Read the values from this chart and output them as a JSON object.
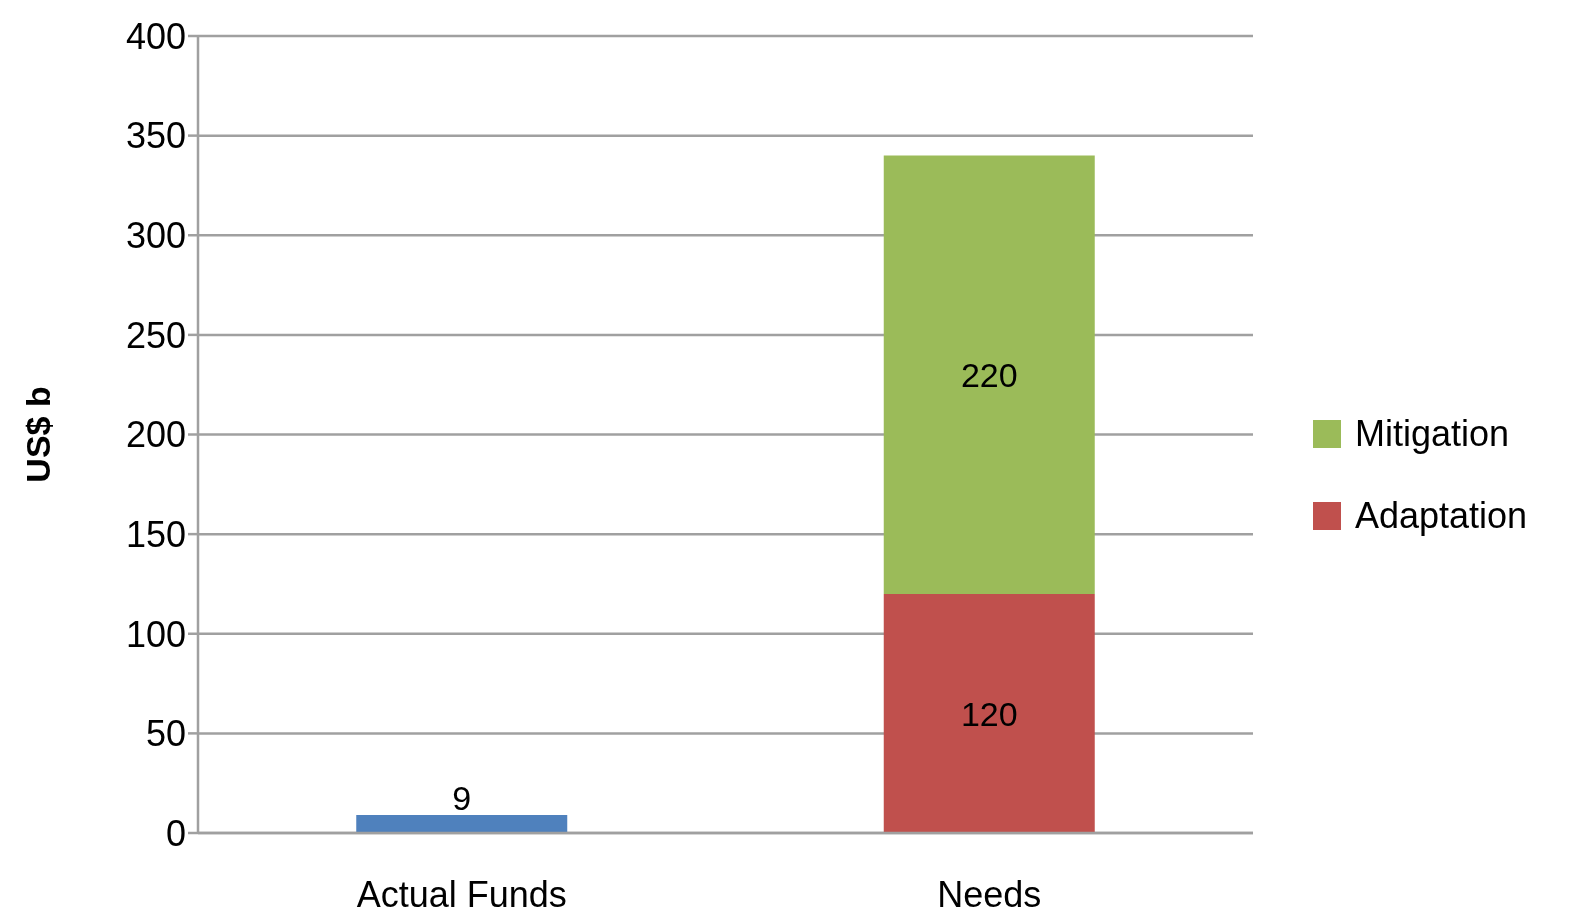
{
  "chart_data": {
    "type": "bar",
    "ylabel": "US$ b",
    "categories": [
      "Actual Funds",
      "Needs"
    ],
    "series": [
      {
        "color": "#4f81bd",
        "values": [
          9,
          null
        ]
      },
      {
        "name": "Adaptation",
        "color": "#c0504d",
        "values": [
          null,
          120
        ]
      },
      {
        "name": "Mitigation",
        "color": "#9bbb59",
        "values": [
          null,
          220
        ]
      }
    ],
    "stacked": true,
    "data_labels": true,
    "ylim": [
      0,
      400
    ],
    "yticks": [
      0,
      50,
      100,
      150,
      200,
      250,
      300,
      350,
      400
    ],
    "grid": "y",
    "legend": "right"
  }
}
